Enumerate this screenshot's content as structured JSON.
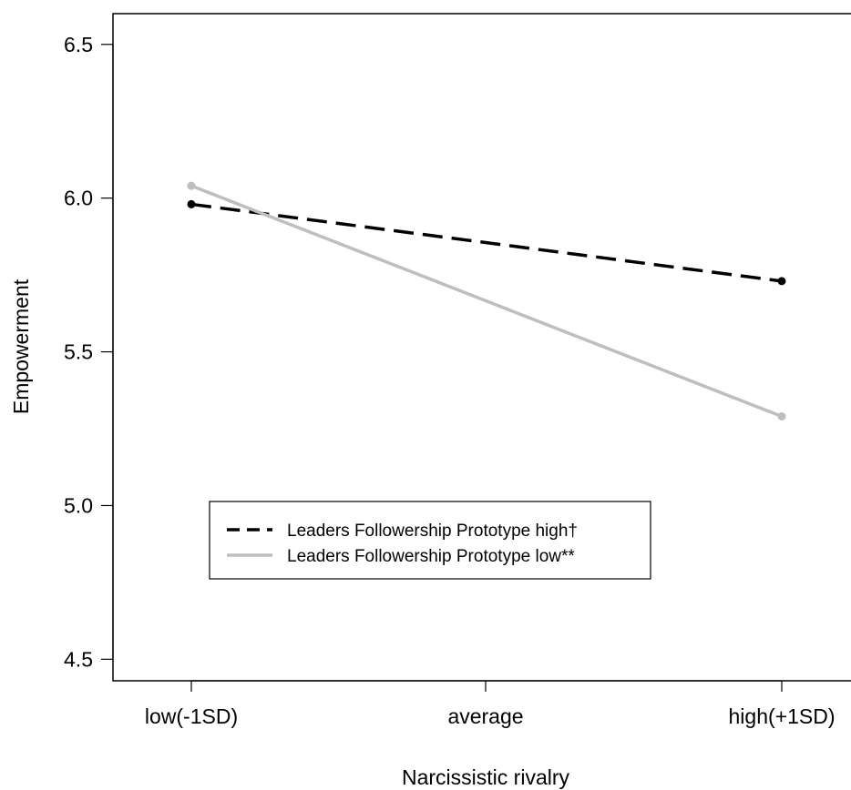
{
  "chart_data": {
    "type": "line",
    "title": "",
    "xlabel": "Narcissistic rivalry",
    "ylabel": "Empowerment",
    "categories": [
      "low(-1SD)",
      "average",
      "high(+1SD)"
    ],
    "yticks": [
      "4.5",
      "5.0",
      "5.5",
      "6.0",
      "6.5"
    ],
    "ylim": [
      4.43,
      6.6
    ],
    "grid": false,
    "legend_position": "lower-left",
    "series": [
      {
        "name": "Leaders Followership Prototype high†",
        "x": [
          "low(-1SD)",
          "high(+1SD)"
        ],
        "values": [
          5.98,
          5.73
        ],
        "color": "#000000",
        "style": "dashed"
      },
      {
        "name": "Leaders Followership Prototype low**",
        "x": [
          "low(-1SD)",
          "high(+1SD)"
        ],
        "values": [
          6.04,
          5.29
        ],
        "color": "#bebebe",
        "style": "solid"
      }
    ]
  }
}
